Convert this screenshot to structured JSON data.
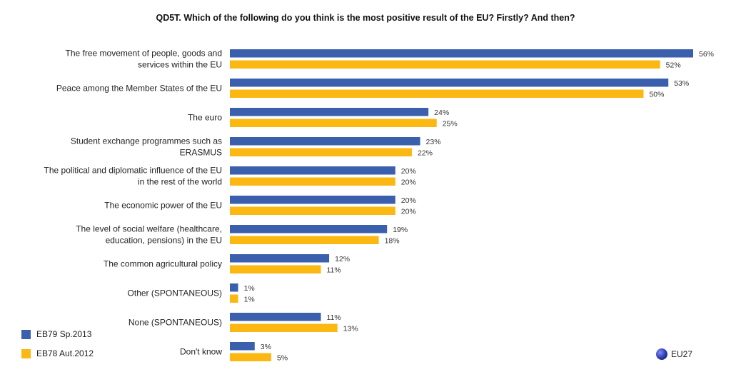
{
  "chart_data": {
    "type": "bar",
    "orientation": "horizontal",
    "title": "QD5T. Which of the following do you think is the most positive result of the EU? Firstly? And then?",
    "categories": [
      [
        "The free movement of people, goods and",
        "services within the EU"
      ],
      [
        "Peace among the Member States of the EU"
      ],
      [
        "The euro"
      ],
      [
        "Student exchange programmes such as",
        "ERASMUS"
      ],
      [
        "The political and diplomatic influence of the EU",
        "in the rest of the world"
      ],
      [
        "The economic power of the EU"
      ],
      [
        "The level of social welfare (healthcare,",
        "education, pensions) in the EU"
      ],
      [
        "The common agricultural policy"
      ],
      [
        "Other (SPONTANEOUS)"
      ],
      [
        "None (SPONTANEOUS)"
      ],
      [
        "Don't know"
      ]
    ],
    "series": [
      {
        "name": "EB79 Sp.2013",
        "color": "#3a5fad",
        "values": [
          56,
          53,
          24,
          23,
          20,
          20,
          19,
          12,
          1,
          11,
          3
        ]
      },
      {
        "name": "EB78 Aut.2012",
        "color": "#fbb812",
        "values": [
          52,
          50,
          25,
          22,
          20,
          20,
          18,
          11,
          1,
          13,
          5
        ]
      }
    ],
    "value_suffix": "%",
    "xlim": [
      0,
      56
    ],
    "grid": false,
    "legend_position": "bottom-left"
  },
  "region_label": "EU27"
}
